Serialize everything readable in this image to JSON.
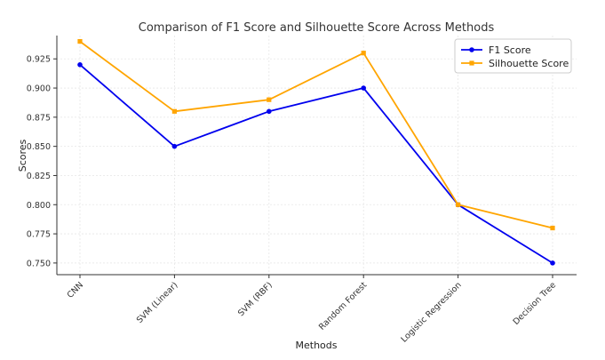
{
  "chart_data": {
    "type": "line",
    "title": "Comparison of F1 Score and Silhouette Score Across Methods",
    "xlabel": "Methods",
    "ylabel": "Scores",
    "categories": [
      "CNN",
      "SVM (Linear)",
      "SVM (RBF)",
      "Random Forest",
      "Logistic Regression",
      "Decision Tree"
    ],
    "series": [
      {
        "name": "F1 Score",
        "values": [
          0.92,
          0.85,
          0.88,
          0.9,
          0.8,
          0.75
        ],
        "color": "#0000ee",
        "marker": "circle"
      },
      {
        "name": "Silhouette Score",
        "values": [
          0.94,
          0.88,
          0.89,
          0.93,
          0.8,
          0.78
        ],
        "color": "#ffa500",
        "marker": "square"
      }
    ],
    "ylim": [
      0.74,
      0.945
    ],
    "yticks": [
      "0.750",
      "0.775",
      "0.800",
      "0.825",
      "0.850",
      "0.875",
      "0.900",
      "0.925"
    ],
    "grid": true,
    "legend_position": "top-right"
  }
}
